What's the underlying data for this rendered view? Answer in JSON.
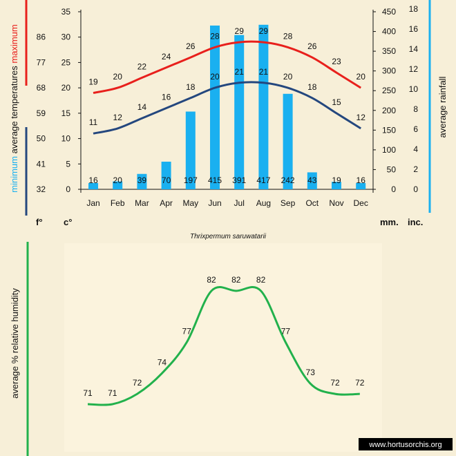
{
  "chart_data": [
    {
      "type": "bar",
      "title": "Thrixpermum saruwatarii",
      "categories": [
        "Jan",
        "Feb",
        "Mar",
        "Apr",
        "May",
        "Jun",
        "Jul",
        "Aug",
        "Sep",
        "Oct",
        "Nov",
        "Dec"
      ],
      "series": [
        {
          "name": "average rainfall (mm.)",
          "values": [
            16,
            20,
            39,
            70,
            197,
            415,
            391,
            417,
            242,
            43,
            19,
            16
          ],
          "color": "#1ab0f0"
        },
        {
          "name": "maximum average temperatures (c°)",
          "values": [
            19,
            20,
            22,
            24,
            26,
            28,
            29,
            29,
            28,
            26,
            23,
            20
          ],
          "color": "#e8201c"
        },
        {
          "name": "minimum average temperatures (c°)",
          "values": [
            11,
            12,
            14,
            16,
            18,
            20,
            21,
            21,
            20,
            18,
            15,
            12
          ],
          "color": "#24477e"
        }
      ],
      "y_left_c": {
        "ticks": [
          0,
          5,
          10,
          15,
          20,
          25,
          30,
          35
        ],
        "ylim": [
          0,
          35
        ],
        "unit": "c°"
      },
      "y_left_f": {
        "ticks": [
          32,
          41,
          50,
          59,
          68,
          77,
          86
        ],
        "unit": "f°"
      },
      "y_right_mm": {
        "ticks": [
          0,
          50,
          100,
          150,
          200,
          250,
          300,
          350,
          400,
          450
        ],
        "ylim": [
          0,
          450
        ],
        "unit": "mm."
      },
      "y_right_inc": {
        "ticks": [
          0,
          2,
          4,
          6,
          8,
          10,
          12,
          14,
          16,
          18
        ],
        "unit": "inc."
      },
      "labels": {
        "minimum": "minimum",
        "avg_temps": "average  temperatures",
        "maximum": "maximum",
        "rainfall": "average rainfall"
      }
    },
    {
      "type": "line",
      "categories": [
        "Jan",
        "Feb",
        "Mar",
        "Apr",
        "May",
        "Jun",
        "Jul",
        "Aug",
        "Sep",
        "Oct",
        "Nov",
        "Dec"
      ],
      "series": [
        {
          "name": "average % relative humidity",
          "values": [
            71,
            71,
            72,
            74,
            77,
            82,
            82,
            82,
            77,
            73,
            72,
            72
          ],
          "color": "#22b14c"
        }
      ],
      "ylabel": "average %  relative humidity"
    }
  ],
  "colors": {
    "background": "#f7efd8",
    "panel": "#f8f0d8",
    "max": "#e8201c",
    "min": "#24477e",
    "rain": "#1ab0f0",
    "humidity": "#22b14c"
  },
  "credit": "www.hortusorchis.org"
}
